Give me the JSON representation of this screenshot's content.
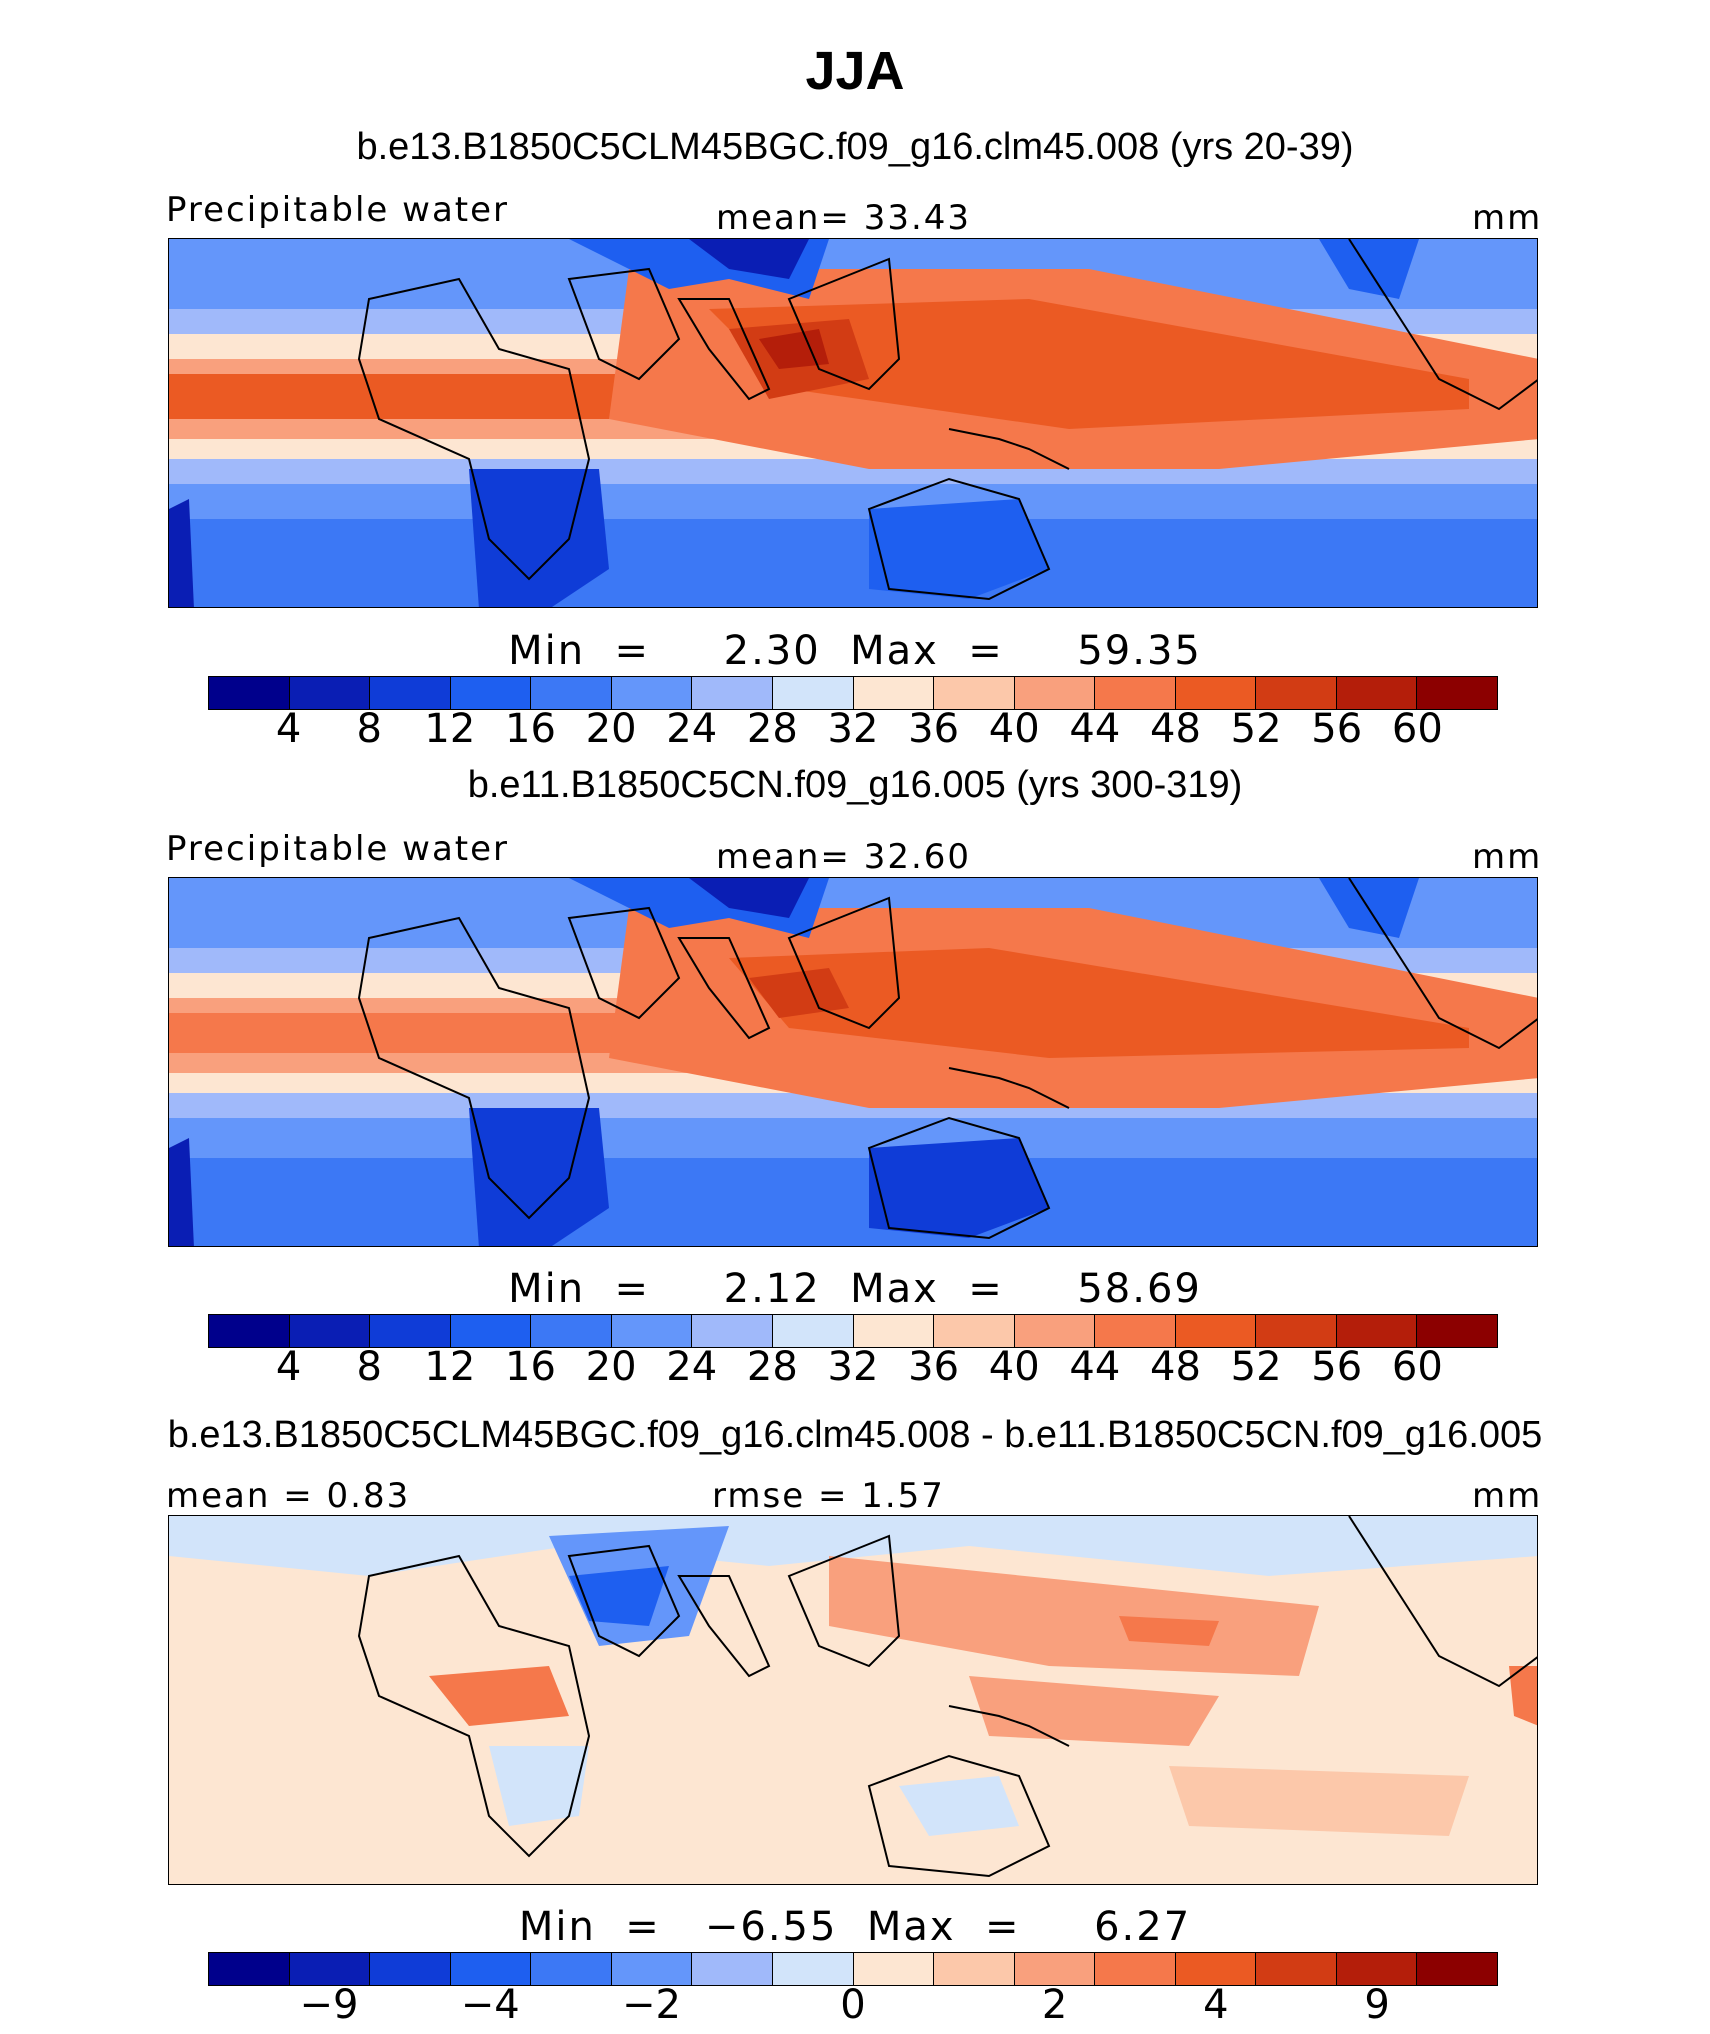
{
  "title": "JJA",
  "colors": {
    "abs_scale": [
      "#00008c",
      "#0a1eb4",
      "#0f3cd7",
      "#1e5ff0",
      "#3c78f5",
      "#6496fa",
      "#a0b9fa",
      "#d2e4fa",
      "#fde6d2",
      "#fcc8aa",
      "#f9a07d",
      "#f5784b",
      "#eb5a23",
      "#d23c14",
      "#b41e0a",
      "#8c0000"
    ],
    "diff_scale": [
      "#00008c",
      "#0a1eb4",
      "#0f3cd7",
      "#1e5ff0",
      "#3c78f5",
      "#6496fa",
      "#a0b9fa",
      "#d2e4fa",
      "#fde6d2",
      "#fcc8aa",
      "#f9a07d",
      "#f5784b",
      "#eb5a23",
      "#d23c14",
      "#b41e0a",
      "#8c0000"
    ]
  },
  "panels": [
    {
      "subtitle": "b.e13.B1850C5CLM45BGC.f09_g16.clm45.008 (yrs 20-39)",
      "left_label": "Precipitable water",
      "center_label": "mean=   33.43",
      "right_label": "mm",
      "minmax": "Min  =     2.30  Max  =     59.35",
      "ticks": [
        "4",
        "8",
        "12",
        "16",
        "20",
        "24",
        "28",
        "32",
        "36",
        "40",
        "44",
        "48",
        "52",
        "56",
        "60"
      ],
      "chart_data": {
        "type": "contour-map",
        "variable": "Precipitable water",
        "units": "mm",
        "mean": 33.43,
        "min": 2.3,
        "max": 59.35
      }
    },
    {
      "subtitle": "b.e11.B1850C5CN.f09_g16.005 (yrs 300-319)",
      "left_label": "Precipitable water",
      "center_label": "mean=   32.60",
      "right_label": "mm",
      "minmax": "Min  =     2.12  Max  =     58.69",
      "ticks": [
        "4",
        "8",
        "12",
        "16",
        "20",
        "24",
        "28",
        "32",
        "36",
        "40",
        "44",
        "48",
        "52",
        "56",
        "60"
      ],
      "chart_data": {
        "type": "contour-map",
        "variable": "Precipitable water",
        "units": "mm",
        "mean": 32.6,
        "min": 2.12,
        "max": 58.69
      }
    },
    {
      "subtitle": "b.e13.B1850C5CLM45BGC.f09_g16.clm45.008 - b.e11.B1850C5CN.f09_g16.005",
      "left_label": "mean  =    0.83",
      "center_label": "rmse  =    1.57",
      "right_label": "mm",
      "minmax": "Min  =   −6.55  Max  =     6.27",
      "ticks": [
        "−9",
        "−4",
        "−2",
        "0",
        "2",
        "4",
        "9"
      ],
      "chart_data": {
        "type": "contour-map",
        "variable": "difference",
        "units": "mm",
        "mean": 0.83,
        "rmse": 1.57,
        "min": -6.55,
        "max": 6.27
      }
    }
  ]
}
